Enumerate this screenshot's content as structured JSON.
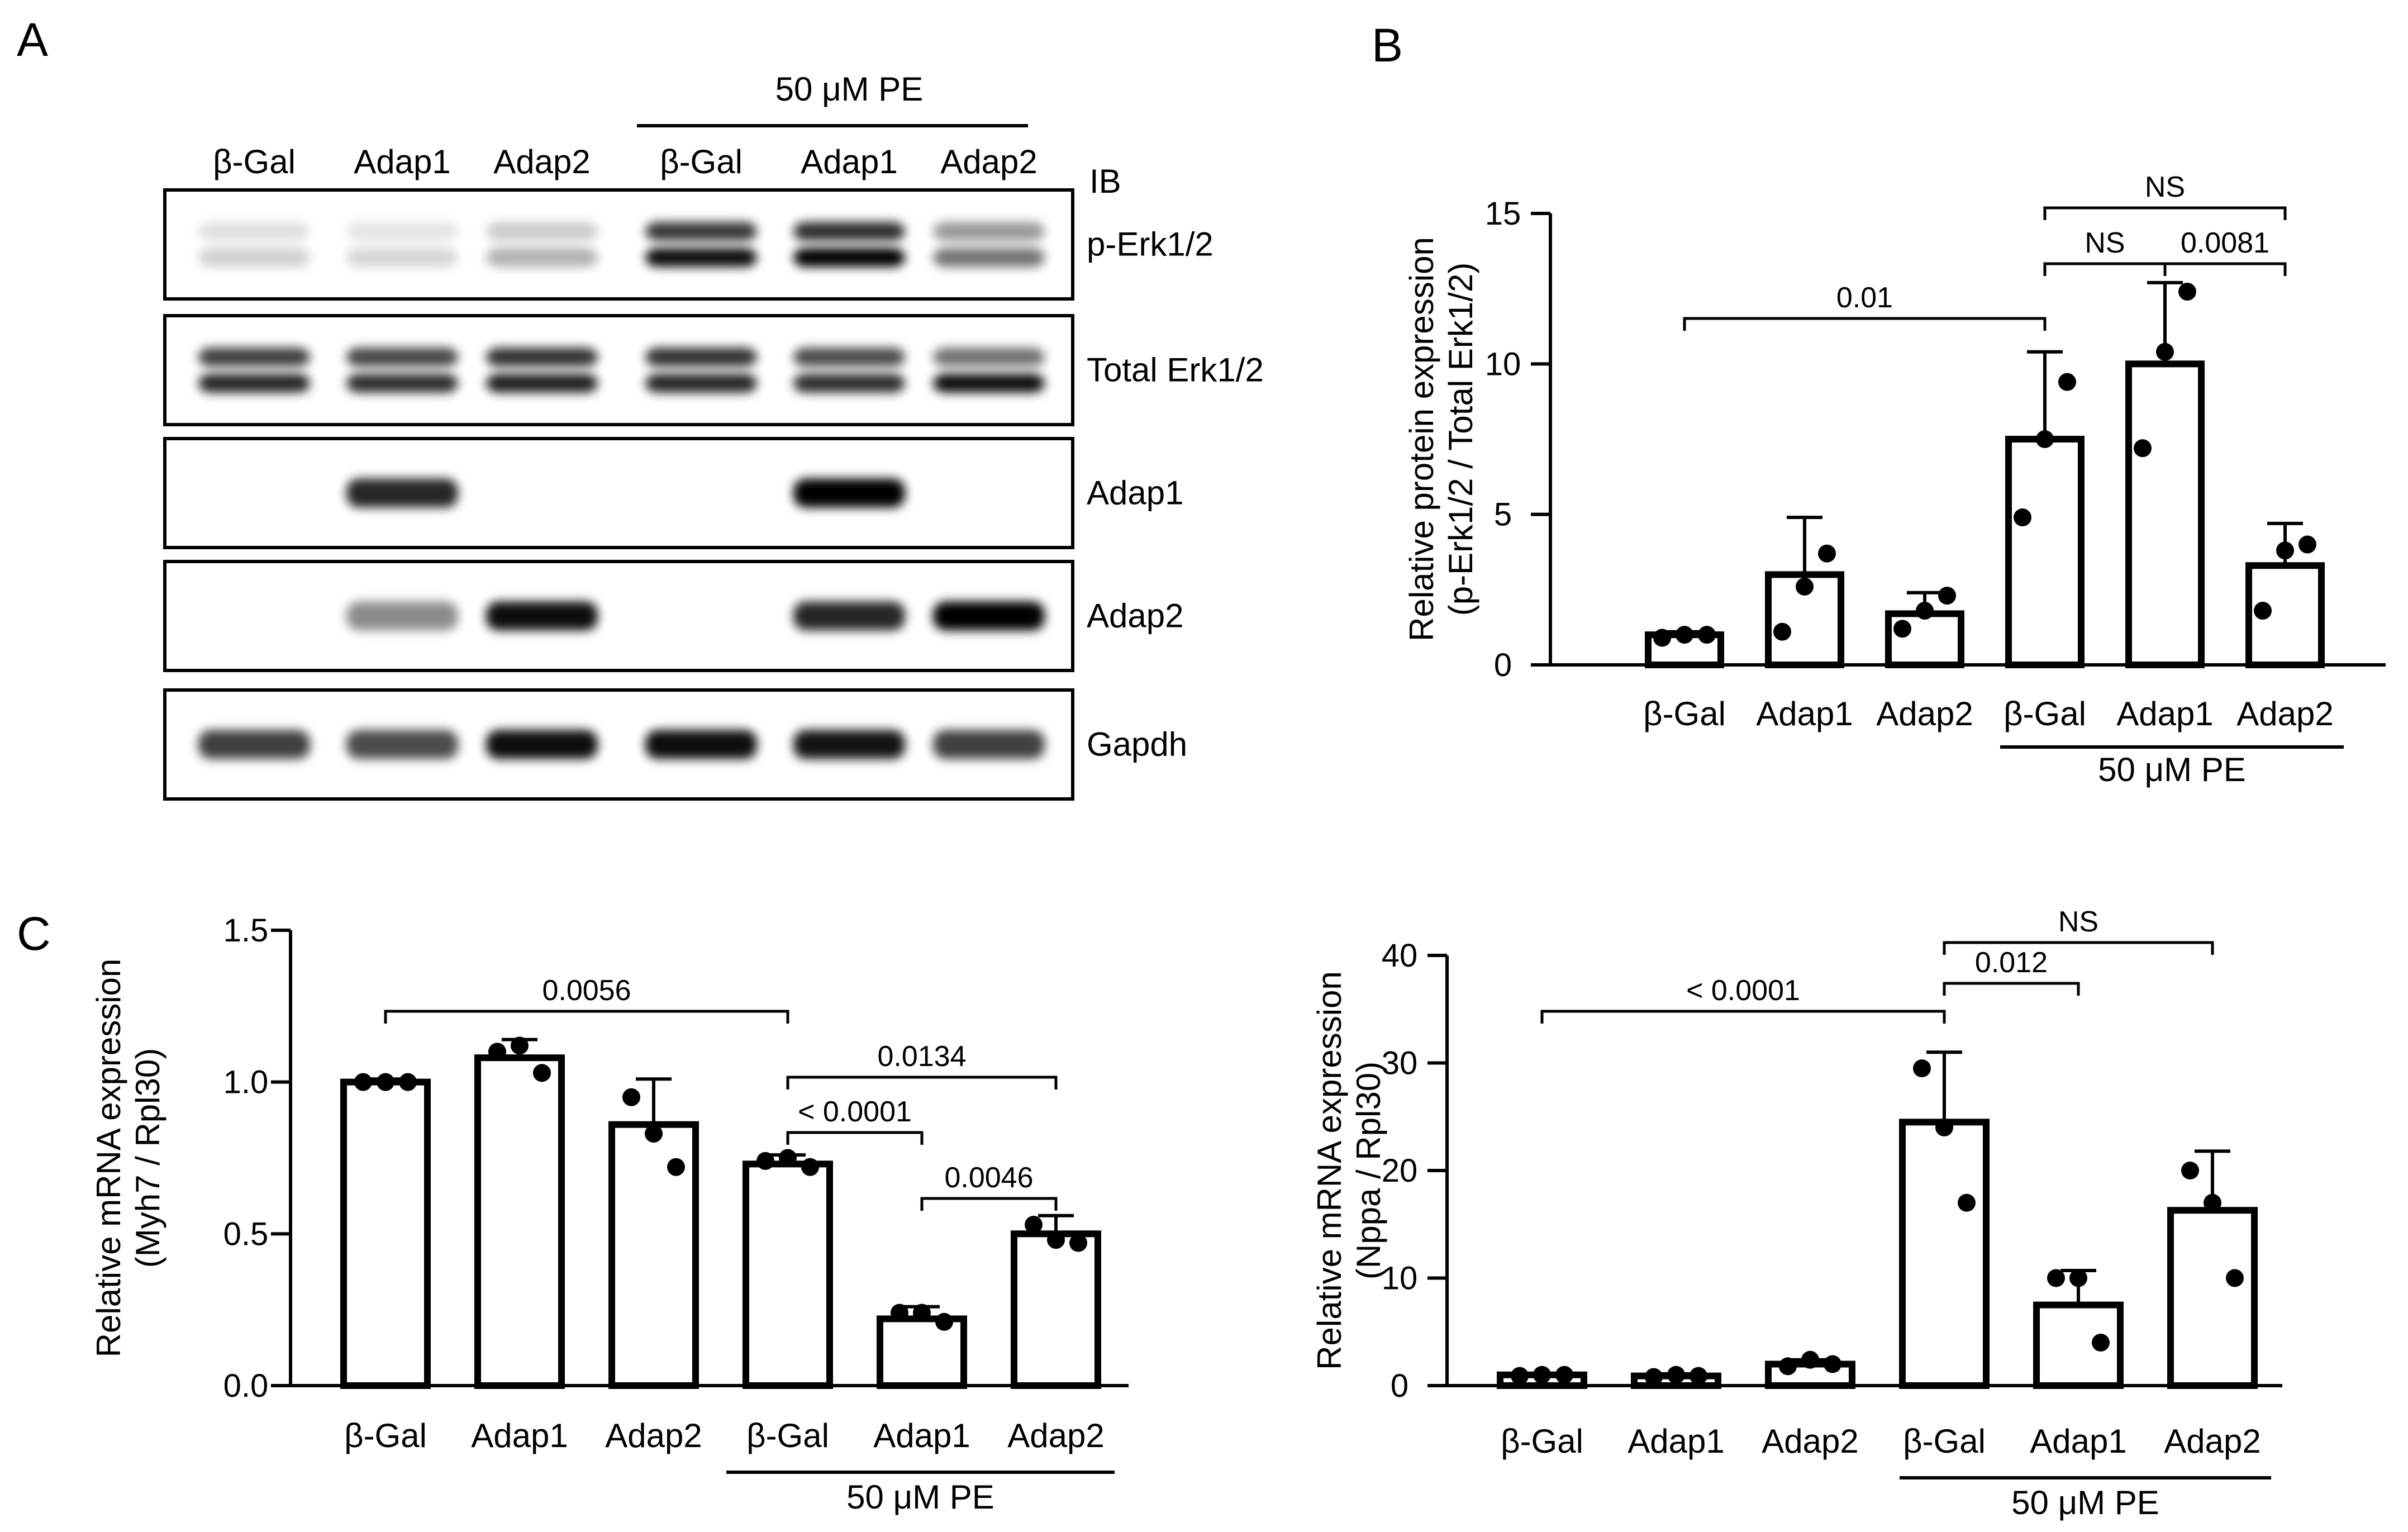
{
  "panel_a": {
    "letter": "A",
    "treatment_label": "50 μM PE",
    "lane_labels": [
      "β-Gal",
      "Adap1",
      "Adap2",
      "β-Gal",
      "Adap1",
      "Adap2"
    ],
    "ib_label": "IB",
    "blots": [
      {
        "label": "p-Erk1/2",
        "bands": [
          [
            0.12,
            0.1,
            0.2,
            0.78,
            0.82,
            0.4
          ],
          [
            0.18,
            0.16,
            0.3,
            0.95,
            1.0,
            0.55
          ]
        ]
      },
      {
        "label": "Total Erk1/2",
        "bands": [
          [
            0.75,
            0.72,
            0.8,
            0.8,
            0.7,
            0.55
          ],
          [
            0.85,
            0.82,
            0.88,
            0.85,
            0.82,
            0.95
          ]
        ]
      },
      {
        "label": "Adap1",
        "bands": [
          [
            0.0,
            0.85,
            0.0,
            0.0,
            1.0,
            0.0
          ]
        ]
      },
      {
        "label": "Adap2",
        "bands": [
          [
            0.0,
            0.45,
            0.95,
            0.0,
            0.85,
            1.0
          ]
        ]
      },
      {
        "label": "Gapdh",
        "bands": [
          [
            0.75,
            0.7,
            0.95,
            0.95,
            0.92,
            0.75
          ]
        ]
      }
    ]
  },
  "chart_data": [
    {
      "panel": "B",
      "type": "bar",
      "categories": [
        "β-Gal",
        "Adap1",
        "Adap2",
        "β-Gal",
        "Adap1",
        "Adap2"
      ],
      "group_label": "50 μM PE",
      "values": [
        1.0,
        3.0,
        1.7,
        7.5,
        10.0,
        3.3
      ],
      "errors": [
        0.1,
        1.9,
        0.7,
        2.9,
        2.7,
        1.4
      ],
      "points": [
        [
          0.9,
          1.0,
          1.0
        ],
        [
          1.1,
          2.6,
          3.7
        ],
        [
          1.2,
          1.8,
          2.3
        ],
        [
          4.9,
          7.5,
          9.4
        ],
        [
          7.2,
          10.4,
          12.4
        ],
        [
          1.8,
          3.8,
          4.0
        ]
      ],
      "ylabel_line1": "Relative protein expression",
      "ylabel_line2": "(p-Erk1/2 / Total Erk1/2)",
      "ylim": [
        0,
        15
      ],
      "yticks": [
        0,
        5,
        10,
        15
      ],
      "comparisons": [
        {
          "from": 0,
          "to": 3,
          "label": "0.01"
        },
        {
          "from": 3,
          "to": 4,
          "label": "NS"
        },
        {
          "from": 4,
          "to": 5,
          "label": "0.0081"
        },
        {
          "from": 3,
          "to": 5,
          "label": "NS"
        }
      ]
    },
    {
      "panel": "C",
      "type": "bar",
      "categories": [
        "β-Gal",
        "Adap1",
        "Adap2",
        "β-Gal",
        "Adap1",
        "Adap2"
      ],
      "group_label": "50 μM PE",
      "values": [
        1.0,
        1.08,
        0.86,
        0.73,
        0.22,
        0.5
      ],
      "errors": [
        0.01,
        0.06,
        0.15,
        0.03,
        0.04,
        0.06
      ],
      "points": [
        [
          1.0,
          1.0,
          1.0
        ],
        [
          1.1,
          1.12,
          1.03
        ],
        [
          0.95,
          0.83,
          0.72
        ],
        [
          0.74,
          0.75,
          0.72
        ],
        [
          0.24,
          0.24,
          0.21
        ],
        [
          0.53,
          0.48,
          0.47
        ]
      ],
      "ylabel_line1": "Relative mRNA expression",
      "ylabel_line2": "(Myh7 / Rpl30)",
      "ylim": [
        0,
        1.5
      ],
      "yticks": [
        0.0,
        0.5,
        1.0,
        1.5
      ],
      "comparisons": [
        {
          "from": 0,
          "to": 3,
          "label": "0.0056"
        },
        {
          "from": 3,
          "to": 4,
          "label": "< 0.0001"
        },
        {
          "from": 3,
          "to": 5,
          "label": "0.0134"
        },
        {
          "from": 4,
          "to": 5,
          "label": "0.0046"
        }
      ]
    },
    {
      "panel": "C",
      "type": "bar",
      "categories": [
        "β-Gal",
        "Adap1",
        "Adap2",
        "β-Gal",
        "Adap1",
        "Adap2"
      ],
      "group_label": "50 μM PE",
      "values": [
        1.0,
        0.9,
        2.0,
        24.5,
        7.5,
        16.3
      ],
      "errors": [
        0.1,
        0.2,
        0.4,
        6.5,
        3.2,
        5.5
      ],
      "points": [
        [
          0.9,
          1.0,
          1.0
        ],
        [
          0.8,
          1.0,
          0.9
        ],
        [
          1.8,
          2.4,
          2.0
        ],
        [
          29.5,
          24.0,
          17.0
        ],
        [
          10.0,
          10.0,
          4.0
        ],
        [
          20.0,
          17.0,
          10.0
        ]
      ],
      "ylabel_line1": "Relative mRNA expression",
      "ylabel_line2": "(Nppa / Rpl30)",
      "ylim": [
        0,
        40
      ],
      "yticks": [
        0,
        10,
        20,
        30,
        40
      ],
      "comparisons": [
        {
          "from": 0,
          "to": 3,
          "label": "< 0.0001"
        },
        {
          "from": 3,
          "to": 4,
          "label": "0.012"
        },
        {
          "from": 3,
          "to": 5,
          "label": "NS"
        }
      ]
    }
  ],
  "panel_b_letter": "B",
  "panel_c_letter": "C"
}
